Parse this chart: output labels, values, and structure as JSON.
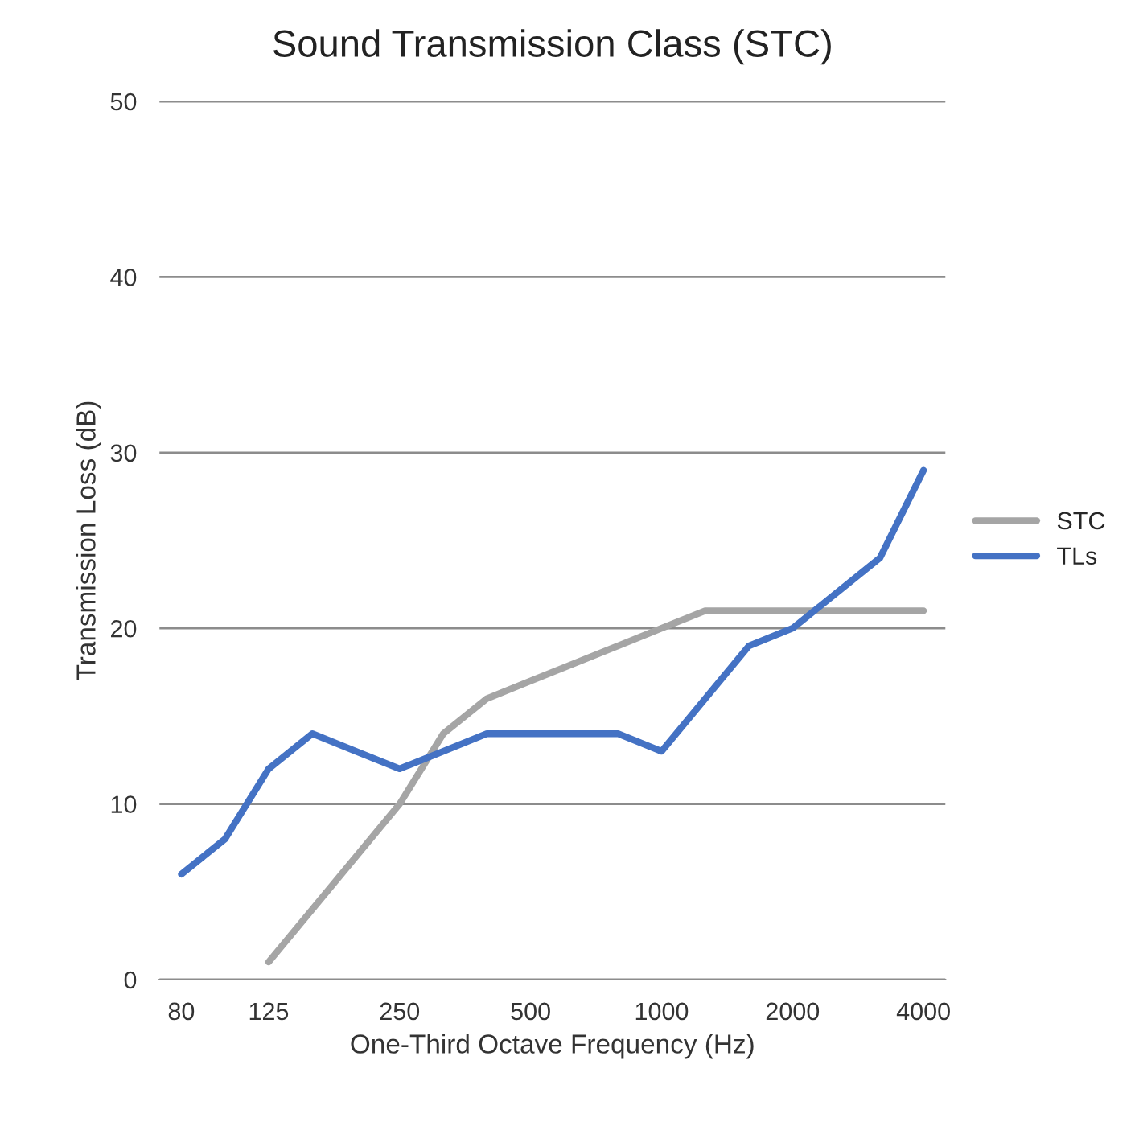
{
  "chart_data": {
    "type": "line",
    "title": "Sound Transmission Class (STC)",
    "xlabel": "One-Third Octave Frequency (Hz)",
    "ylabel": "Transmission Loss (dB)",
    "categories": [
      "80",
      null,
      "125",
      null,
      null,
      "250",
      null,
      null,
      "500",
      null,
      null,
      "1000",
      null,
      null,
      "2000",
      null,
      null,
      "4000"
    ],
    "series": [
      {
        "name": "STC",
        "color": "#a5a5a5",
        "values": [
          null,
          null,
          1,
          4,
          7,
          10,
          14,
          16,
          17,
          18,
          19,
          20,
          21,
          21,
          21,
          21,
          21,
          21
        ]
      },
      {
        "name": "TLs",
        "color": "#4472c4",
        "values": [
          6,
          8,
          12,
          14,
          13,
          12,
          13,
          14,
          14,
          14,
          14,
          13,
          16,
          19,
          20,
          22,
          24,
          29
        ]
      }
    ],
    "ylim": [
      0,
      50
    ],
    "yticks": [
      0,
      10,
      20,
      30,
      40,
      50
    ],
    "grid": "y",
    "legend": "right",
    "marker": "none",
    "line_style": "solid"
  }
}
